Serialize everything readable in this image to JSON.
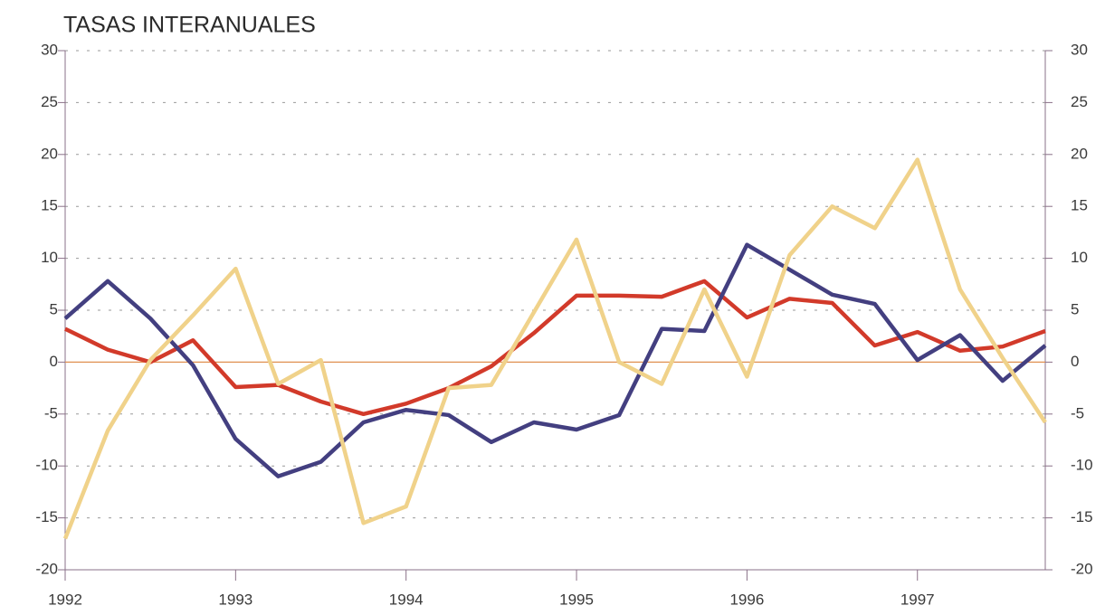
{
  "chart_data": {
    "type": "line",
    "title": "TASAS INTERANUALES",
    "x": [
      1992,
      1992.25,
      1992.5,
      1992.75,
      1993,
      1993.25,
      1993.5,
      1993.75,
      1994,
      1994.25,
      1994.5,
      1994.75,
      1995,
      1995.25,
      1995.5,
      1995.75,
      1996,
      1996.25,
      1996.5,
      1996.75,
      1997,
      1997.25,
      1997.5,
      1997.75
    ],
    "series": [
      {
        "color": "#d23a2a",
        "values": [
          3.2,
          1.2,
          0,
          2.1,
          -2.4,
          -2.2,
          -3.8,
          -5.0,
          -4.0,
          -2.5,
          -0.4,
          2.8,
          6.4,
          6.4,
          6.3,
          7.8,
          4.3,
          6.1,
          5.7,
          1.6,
          2.9,
          1.1,
          1.5,
          3.0
        ]
      },
      {
        "color": "#433f80",
        "values": [
          4.2,
          7.8,
          4.2,
          -0.3,
          -7.4,
          -11.0,
          -9.6,
          -5.8,
          -4.6,
          -5.1,
          -7.7,
          -5.8,
          -6.5,
          -5.1,
          3.2,
          3.0,
          11.3,
          8.9,
          6.5,
          5.6,
          0.2,
          2.6,
          -1.8,
          1.6
        ]
      },
      {
        "color": "#f0d28a",
        "values": [
          -17.0,
          -6.6,
          0.2,
          4.5,
          9.0,
          -2.1,
          0.2,
          -15.5,
          -13.9,
          -2.5,
          -2.2,
          4.8,
          11.8,
          0,
          -2.1,
          7.0,
          -1.4,
          10.3,
          15.0,
          12.9,
          19.5,
          7.0,
          0.4,
          -5.8
        ]
      }
    ],
    "xlim": [
      1992,
      1997.75
    ],
    "xticks": [
      1992,
      1993,
      1994,
      1995,
      1996,
      1997
    ],
    "ylim": [
      -20,
      30
    ],
    "yticks": [
      -20,
      -15,
      -10,
      -5,
      0,
      5,
      10,
      15,
      20,
      25,
      30
    ],
    "y2lim": [
      -20,
      30
    ],
    "y2ticks": [
      -20,
      -15,
      -10,
      -5,
      0,
      5,
      10,
      15,
      20,
      25,
      30
    ],
    "grid": true
  }
}
